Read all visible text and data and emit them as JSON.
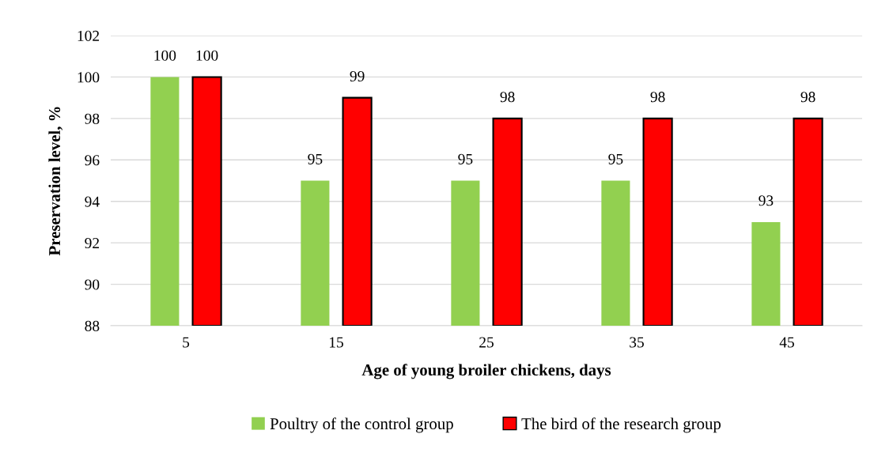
{
  "chart_data": {
    "type": "bar",
    "xlabel": "Age of young broiler chickens, days",
    "ylabel": "Preservation level, %",
    "categories": [
      "5",
      "15",
      "25",
      "35",
      "45"
    ],
    "series": [
      {
        "name": "Poultry of the control group",
        "color": "#92d050",
        "values": [
          100,
          95,
          95,
          95,
          93
        ]
      },
      {
        "name": "The bird of the research group",
        "color": "#ff0000",
        "values": [
          100,
          99,
          98,
          98,
          98
        ]
      }
    ],
    "ylim": [
      88,
      102
    ],
    "yticks": [
      88,
      90,
      92,
      94,
      96,
      98,
      100,
      102
    ],
    "grid": "y",
    "legend": "bottom",
    "data_labels": true
  }
}
